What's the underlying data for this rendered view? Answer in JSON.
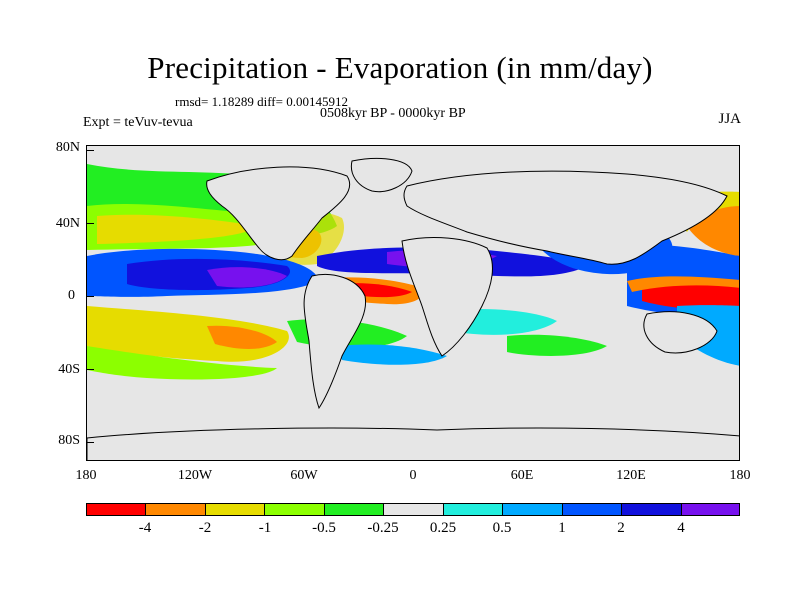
{
  "title": "Precipitation - Evaporation (in mm/day)",
  "stats": "rmsd= 1.18289 diff= 0.00145912",
  "period": "0508kyr BP - 0000kyr BP",
  "experiment": "Expt = teVuv-tevua",
  "season": "JJA",
  "map": {
    "lat_labels": [
      "80N",
      "40N",
      "0",
      "40S",
      "80S"
    ],
    "lon_labels": [
      "180",
      "120W",
      "60W",
      "0",
      "60E",
      "120E",
      "180"
    ],
    "background_color": "#e6e6e6"
  },
  "colorbar": {
    "labels": [
      "-4",
      "-2",
      "-1",
      "-0.5",
      "-0.25",
      "0.25",
      "0.5",
      "1",
      "2",
      "4"
    ],
    "colors": [
      "#ff0000",
      "#ff8800",
      "#e6dc00",
      "#8cff00",
      "#22ee22",
      "#e6e6e6",
      "#22eedd",
      "#00aaff",
      "#0055ff",
      "#1111dd",
      "#7711ee"
    ]
  }
}
